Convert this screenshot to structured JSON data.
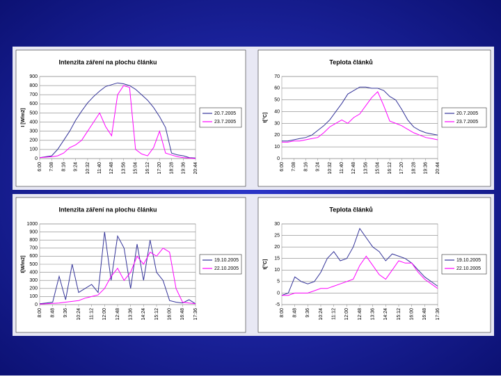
{
  "chart_data": [
    {
      "type": "line",
      "title": "Intenzita záření na plochu článku",
      "y_label": "I [W/m2]",
      "categories": [
        "6:00",
        null,
        "7:08",
        null,
        "8:16",
        null,
        "9:24",
        null,
        "10:32",
        null,
        "11:40",
        null,
        "12:48",
        null,
        "13:56",
        null,
        "15:04",
        null,
        "16:12",
        null,
        "17:20",
        null,
        "18:28",
        null,
        "19:36",
        null,
        "20:44"
      ],
      "series": [
        {
          "name": "20.7.2005",
          "color": "#333399",
          "values": [
            10,
            20,
            30,
            100,
            200,
            300,
            420,
            520,
            610,
            680,
            740,
            790,
            810,
            830,
            820,
            800,
            760,
            700,
            640,
            560,
            460,
            340,
            60,
            40,
            30,
            10,
            5
          ]
        },
        {
          "name": "23.7.2005",
          "color": "#ff00ff",
          "values": [
            10,
            15,
            20,
            30,
            60,
            120,
            150,
            200,
            300,
            400,
            500,
            350,
            250,
            700,
            800,
            780,
            100,
            50,
            30,
            120,
            300,
            60,
            40,
            20,
            10,
            5,
            0
          ]
        }
      ],
      "ylim": [
        0,
        900
      ],
      "yticks": [
        0,
        100,
        200,
        300,
        400,
        500,
        600,
        700,
        800,
        900
      ],
      "grid": true,
      "legend": "right"
    },
    {
      "type": "line",
      "title": "Teplota článků",
      "y_label": "t[°C]",
      "categories": [
        "6:00",
        null,
        "7:08",
        null,
        "8:16",
        null,
        "9:24",
        null,
        "10:32",
        null,
        "11:40",
        null,
        "12:48",
        null,
        "13:56",
        null,
        "15:04",
        null,
        "16:12",
        null,
        "17:20",
        null,
        "18:28",
        null,
        "19:36",
        null,
        "20:44"
      ],
      "series": [
        {
          "name": "20.7.2005",
          "color": "#333399",
          "values": [
            15,
            15,
            16,
            17,
            18,
            20,
            24,
            28,
            33,
            40,
            47,
            55,
            58,
            61,
            61,
            60,
            60,
            58,
            53,
            50,
            42,
            33,
            27,
            24,
            22,
            21,
            20
          ]
        },
        {
          "name": "23.7.2005",
          "color": "#ff00ff",
          "values": [
            14,
            14,
            15,
            15,
            16,
            17,
            18,
            22,
            27,
            30,
            33,
            30,
            35,
            38,
            45,
            52,
            57,
            45,
            32,
            30,
            28,
            25,
            22,
            20,
            18,
            17,
            16
          ]
        }
      ],
      "ylim": [
        0,
        70
      ],
      "yticks": [
        0,
        10,
        20,
        30,
        40,
        50,
        60,
        70
      ],
      "grid": true,
      "legend": "right"
    },
    {
      "type": "line",
      "title": "Intenzita záření na plochu článku",
      "y_label": "I[W/m2]",
      "categories": [
        "8:00",
        null,
        "8:48",
        null,
        "9:36",
        null,
        "10:24",
        null,
        "11:12",
        null,
        "12:00",
        null,
        "12:48",
        null,
        "13:36",
        null,
        "14:24",
        null,
        "15:12",
        null,
        "16:00",
        null,
        "16:48",
        null,
        "17:36"
      ],
      "series": [
        {
          "name": "19.10.2005",
          "color": "#333399",
          "values": [
            10,
            20,
            30,
            350,
            60,
            500,
            150,
            200,
            250,
            150,
            900,
            300,
            850,
            700,
            200,
            750,
            300,
            800,
            400,
            300,
            50,
            30,
            20,
            60,
            10
          ]
        },
        {
          "name": "22.10.2005",
          "color": "#ff00ff",
          "values": [
            5,
            10,
            15,
            20,
            30,
            40,
            50,
            80,
            100,
            120,
            200,
            350,
            450,
            300,
            400,
            600,
            500,
            650,
            600,
            700,
            650,
            200,
            30,
            20,
            10
          ]
        }
      ],
      "ylim": [
        0,
        1000
      ],
      "yticks": [
        0,
        100,
        200,
        300,
        400,
        500,
        600,
        700,
        800,
        900,
        1000
      ],
      "grid": true,
      "legend": "right"
    },
    {
      "type": "line",
      "title": "Teplota článků",
      "y_label": "t[°C]",
      "categories": [
        "8:00",
        null,
        "8:48",
        null,
        "9:36",
        null,
        "10:24",
        null,
        "11:12",
        null,
        "12:00",
        null,
        "12:48",
        null,
        "13:36",
        null,
        "14:24",
        null,
        "15:12",
        null,
        "16:00",
        null,
        "16:48",
        null,
        "17:36"
      ],
      "series": [
        {
          "name": "19.10.2005",
          "color": "#333399",
          "values": [
            -1,
            0,
            7,
            5,
            4,
            5,
            9,
            15,
            18,
            14,
            15,
            20,
            28,
            24,
            20,
            18,
            14,
            17,
            16,
            15,
            13,
            10,
            7,
            5,
            3
          ]
        },
        {
          "name": "22.10.2005",
          "color": "#ff00ff",
          "values": [
            -1,
            -1,
            0,
            0,
            0,
            1,
            2,
            2,
            3,
            4,
            5,
            6,
            12,
            16,
            12,
            8,
            6,
            10,
            14,
            13,
            13,
            9,
            6,
            4,
            2
          ]
        }
      ],
      "ylim": [
        -5,
        30
      ],
      "yticks": [
        -5,
        0,
        5,
        10,
        15,
        20,
        25,
        30
      ],
      "grid": true,
      "legend": "right"
    }
  ]
}
